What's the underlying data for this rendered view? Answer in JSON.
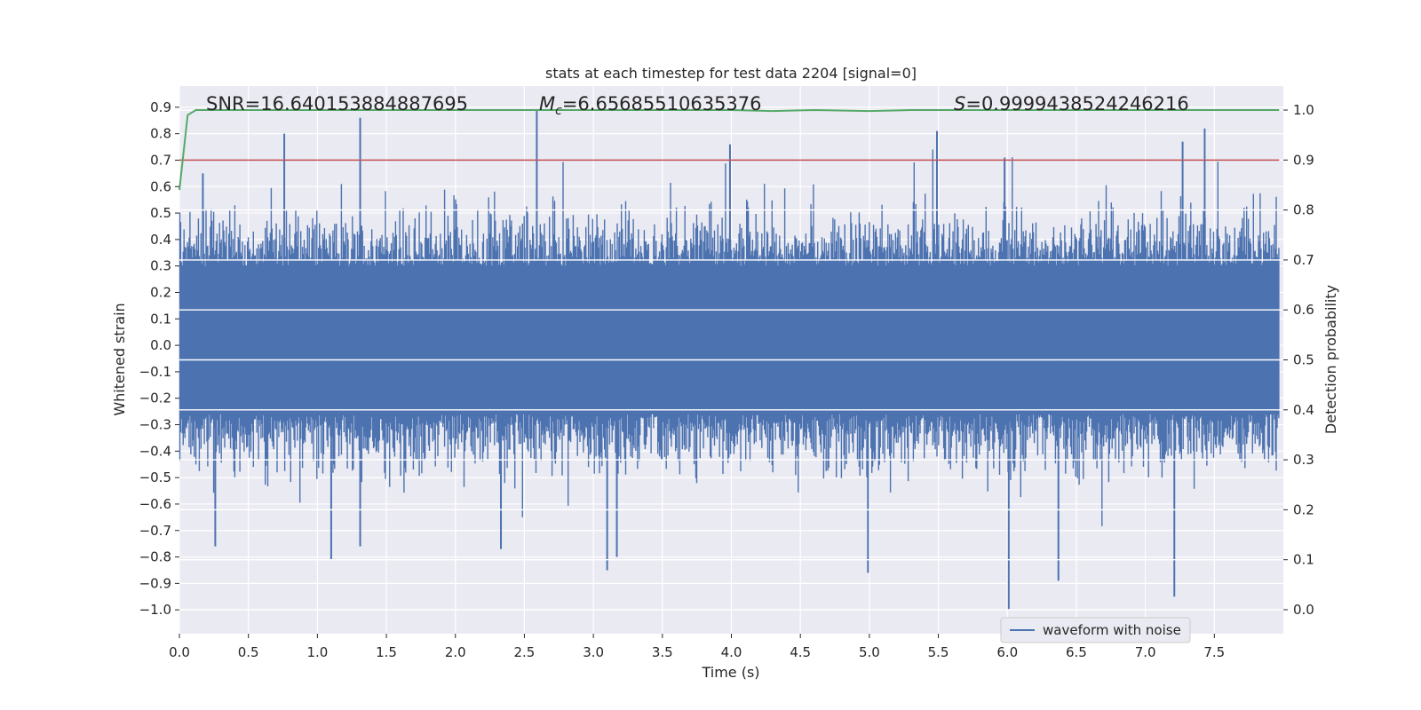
{
  "chart_data": {
    "type": "line",
    "title": "stats at each timestep for test data 2204 [signal=0]",
    "xlabel": "Time (s)",
    "ylabel_left": "Whitened strain",
    "ylabel_right": "Detection probability",
    "xlim": [
      0.0,
      8.0
    ],
    "ylim_left": [
      -1.09,
      0.98
    ],
    "ylim_right": [
      -0.048,
      1.048
    ],
    "x_ticks": [
      "0.0",
      "0.5",
      "1.0",
      "1.5",
      "2.0",
      "2.5",
      "3.0",
      "3.5",
      "4.0",
      "4.5",
      "5.0",
      "5.5",
      "6.0",
      "6.5",
      "7.0",
      "7.5"
    ],
    "y_left_ticks": [
      "0.9",
      "0.8",
      "0.7",
      "0.6",
      "0.5",
      "0.4",
      "0.3",
      "0.2",
      "0.1",
      "0.0",
      "−0.1",
      "−0.2",
      "−0.3",
      "−0.4",
      "−0.5",
      "−0.6",
      "−0.7",
      "−0.8",
      "−0.9",
      "−1.0"
    ],
    "y_right_ticks": [
      "1.0",
      "0.9",
      "0.8",
      "0.7",
      "0.6",
      "0.5",
      "0.4",
      "0.3",
      "0.2",
      "0.1",
      "0.0"
    ],
    "grid": true,
    "legend_position": "lower-right",
    "series": [
      {
        "name": "waveform with noise",
        "axis": "left",
        "color": "#4c72b0",
        "note": "dense noise strain sampled over 0.0–8.0 s",
        "envelope_peaks": [
          {
            "x": 0.17,
            "y": 0.65
          },
          {
            "x": 0.76,
            "y": 0.8
          },
          {
            "x": 1.31,
            "y": 0.86
          },
          {
            "x": 2.59,
            "y": 0.89
          },
          {
            "x": 3.99,
            "y": 0.76
          },
          {
            "x": 5.49,
            "y": 0.81
          },
          {
            "x": 5.98,
            "y": 0.71
          },
          {
            "x": 7.27,
            "y": 0.77
          },
          {
            "x": 7.43,
            "y": 0.82
          }
        ],
        "envelope_troughs": [
          {
            "x": 0.26,
            "y": -0.76
          },
          {
            "x": 1.1,
            "y": -0.81
          },
          {
            "x": 1.31,
            "y": -0.76
          },
          {
            "x": 2.33,
            "y": -0.77
          },
          {
            "x": 3.1,
            "y": -0.85
          },
          {
            "x": 3.17,
            "y": -0.8
          },
          {
            "x": 4.99,
            "y": -0.86
          },
          {
            "x": 6.01,
            "y": -1.0
          },
          {
            "x": 6.37,
            "y": -0.89
          },
          {
            "x": 7.21,
            "y": -0.95
          }
        ]
      },
      {
        "name": "detection probability",
        "axis": "right",
        "color": "#55a868",
        "x": [
          0.0,
          0.06,
          0.12,
          0.5,
          1.0,
          2.0,
          3.0,
          4.0,
          4.3,
          4.6,
          5.0,
          5.3,
          6.0,
          7.0,
          8.0
        ],
        "y": [
          0.84,
          0.99,
          1.0,
          1.0,
          1.0,
          1.0,
          1.0,
          1.0,
          0.998,
          1.0,
          0.998,
          1.0,
          1.0,
          1.0,
          1.0
        ]
      },
      {
        "name": "threshold",
        "axis": "right",
        "color": "#c44e52",
        "x": [
          0.0,
          8.0
        ],
        "y": [
          0.9,
          0.9
        ]
      }
    ],
    "annotations": [
      {
        "label": "snr",
        "text": "SNR=16.640153884887695",
        "x": 0.19
      },
      {
        "label": "mc",
        "base": "M",
        "sub": "c",
        "rest": "=6.65685510635376",
        "x": 2.61
      },
      {
        "label": "s",
        "base": "S",
        "rest": "=0.9999438524246216",
        "x": 5.6
      }
    ]
  },
  "legend": {
    "label": "waveform with noise"
  },
  "colors": {
    "plot_bg": "#eaeaf2",
    "grid": "#ffffff",
    "text": "#262626"
  }
}
